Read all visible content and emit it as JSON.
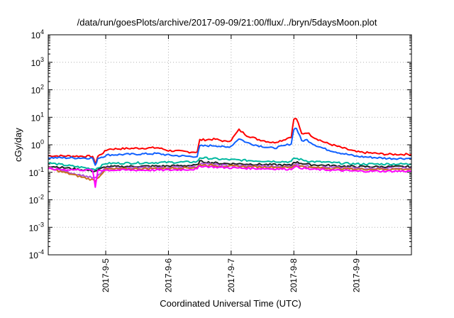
{
  "chart_data": {
    "type": "line",
    "title": "/data/run/goesPlots/archive/2017-09-09/21:00/flux/../bryn/5daysMoon.plot",
    "xlabel": "Coordinated Universal Time (UTC)",
    "ylabel": "cGy/day",
    "yscale": "log",
    "ylim": [
      0.0001,
      10000
    ],
    "xlim": [
      "2017-09-04T02:00",
      "2017-09-09T21:00"
    ],
    "grid": true,
    "legend": "none",
    "yticks": [
      {
        "value": 0.0001,
        "base": "10",
        "exp": "-4"
      },
      {
        "value": 0.001,
        "base": "10",
        "exp": "-3"
      },
      {
        "value": 0.01,
        "base": "10",
        "exp": "-2"
      },
      {
        "value": 0.1,
        "base": "10",
        "exp": "-1"
      },
      {
        "value": 1,
        "base": "10",
        "exp": "0"
      },
      {
        "value": 10,
        "base": "10",
        "exp": "1"
      },
      {
        "value": 100,
        "base": "10",
        "exp": "2"
      },
      {
        "value": 1000,
        "base": "10",
        "exp": "3"
      },
      {
        "value": 10000,
        "base": "10",
        "exp": "4"
      }
    ],
    "xticks": [
      {
        "value": "2017-09-05T00:00",
        "label": "2017-9-5"
      },
      {
        "value": "2017-09-06T00:00",
        "label": "2017-9-6"
      },
      {
        "value": "2017-09-07T00:00",
        "label": "2017-9-7"
      },
      {
        "value": "2017-09-08T00:00",
        "label": "2017-9-8"
      },
      {
        "value": "2017-09-09T00:00",
        "label": "2017-9-9"
      }
    ],
    "series": [
      {
        "color": "#ff0000",
        "x": [
          "2017-09-04T02:00",
          "2017-09-04T19:00",
          "2017-09-04T20:00",
          "2017-09-04T21:00",
          "2017-09-05T01:00",
          "2017-09-05T12:00",
          "2017-09-05T20:00",
          "2017-09-06T00:00",
          "2017-09-06T08:00",
          "2017-09-06T11:00",
          "2017-09-06T12:00",
          "2017-09-06T18:00",
          "2017-09-06T22:00",
          "2017-09-07T00:00",
          "2017-09-07T03:00",
          "2017-09-07T06:00",
          "2017-09-07T10:00",
          "2017-09-07T16:00",
          "2017-09-07T20:00",
          "2017-09-07T23:00",
          "2017-09-08T00:00",
          "2017-09-08T01:00",
          "2017-09-08T03:00",
          "2017-09-08T05:00",
          "2017-09-08T08:00",
          "2017-09-08T12:00",
          "2017-09-08T18:00",
          "2017-09-09T00:00",
          "2017-09-09T12:00",
          "2017-09-09T21:00"
        ],
        "y": [
          0.4,
          0.38,
          0.2,
          0.38,
          0.7,
          0.75,
          0.78,
          0.62,
          0.55,
          0.55,
          1.5,
          1.6,
          1.3,
          1.5,
          3.5,
          2.2,
          1.6,
          1.2,
          1.5,
          2.0,
          8.5,
          9.0,
          2.5,
          2.8,
          1.8,
          1.2,
          0.8,
          0.55,
          0.45,
          0.45
        ]
      },
      {
        "color": "#1060ff",
        "x": [
          "2017-09-04T02:00",
          "2017-09-04T19:00",
          "2017-09-04T20:00",
          "2017-09-04T21:00",
          "2017-09-05T01:00",
          "2017-09-05T12:00",
          "2017-09-05T20:00",
          "2017-09-06T00:00",
          "2017-09-06T08:00",
          "2017-09-06T11:00",
          "2017-09-06T12:00",
          "2017-09-06T18:00",
          "2017-09-06T22:00",
          "2017-09-07T00:00",
          "2017-09-07T03:00",
          "2017-09-07T06:00",
          "2017-09-07T10:00",
          "2017-09-07T16:00",
          "2017-09-07T20:00",
          "2017-09-07T23:00",
          "2017-09-08T00:00",
          "2017-09-08T01:00",
          "2017-09-08T03:00",
          "2017-09-08T05:00",
          "2017-09-08T08:00",
          "2017-09-08T12:00",
          "2017-09-08T18:00",
          "2017-09-09T00:00",
          "2017-09-09T12:00",
          "2017-09-09T21:00"
        ],
        "y": [
          0.34,
          0.33,
          0.17,
          0.33,
          0.43,
          0.46,
          0.48,
          0.42,
          0.38,
          0.38,
          0.9,
          0.95,
          0.8,
          0.9,
          1.7,
          1.2,
          0.95,
          0.75,
          0.9,
          1.1,
          3.8,
          4.0,
          1.4,
          1.5,
          1.0,
          0.7,
          0.5,
          0.38,
          0.32,
          0.32
        ]
      },
      {
        "color": "#00b8a0",
        "x": [
          "2017-09-04T02:00",
          "2017-09-04T20:00",
          "2017-09-05T00:00",
          "2017-09-06T00:00",
          "2017-09-06T11:00",
          "2017-09-06T12:00",
          "2017-09-06T20:00",
          "2017-09-07T06:00",
          "2017-09-07T23:00",
          "2017-09-08T00:00",
          "2017-09-08T06:00",
          "2017-09-09T00:00",
          "2017-09-09T21:00"
        ],
        "y": [
          0.22,
          0.13,
          0.21,
          0.23,
          0.24,
          0.34,
          0.3,
          0.27,
          0.24,
          0.33,
          0.25,
          0.2,
          0.2
        ]
      },
      {
        "color": "#202020",
        "x": [
          "2017-09-04T02:00",
          "2017-09-04T20:00",
          "2017-09-05T00:00",
          "2017-09-06T00:00",
          "2017-09-06T11:00",
          "2017-09-06T12:00",
          "2017-09-06T20:00",
          "2017-09-07T06:00",
          "2017-09-07T23:00",
          "2017-09-08T00:00",
          "2017-09-08T06:00",
          "2017-09-09T00:00",
          "2017-09-09T21:00"
        ],
        "y": [
          0.17,
          0.11,
          0.16,
          0.17,
          0.18,
          0.25,
          0.21,
          0.2,
          0.18,
          0.24,
          0.19,
          0.16,
          0.16
        ]
      },
      {
        "color": "#b050d8",
        "x": [
          "2017-09-04T02:00",
          "2017-09-04T20:00",
          "2017-09-05T00:00",
          "2017-09-06T00:00",
          "2017-09-06T11:00",
          "2017-09-06T12:00",
          "2017-09-06T20:00",
          "2017-09-07T06:00",
          "2017-09-07T23:00",
          "2017-09-08T00:00",
          "2017-09-08T06:00",
          "2017-09-09T00:00",
          "2017-09-09T21:00"
        ],
        "y": [
          0.15,
          0.06,
          0.14,
          0.15,
          0.16,
          0.21,
          0.18,
          0.17,
          0.16,
          0.2,
          0.16,
          0.14,
          0.14
        ]
      },
      {
        "color": "#c87020",
        "x": [
          "2017-09-04T02:00",
          "2017-09-04T20:00",
          "2017-09-05T00:00",
          "2017-09-06T00:00",
          "2017-09-06T11:00",
          "2017-09-06T12:00",
          "2017-09-06T20:00",
          "2017-09-07T06:00",
          "2017-09-07T23:00",
          "2017-09-08T00:00",
          "2017-09-08T06:00",
          "2017-09-09T00:00",
          "2017-09-09T21:00"
        ],
        "y": [
          0.14,
          0.05,
          0.13,
          0.14,
          0.15,
          0.19,
          0.17,
          0.16,
          0.15,
          0.18,
          0.15,
          0.13,
          0.13
        ]
      },
      {
        "color": "#ff00ff",
        "x": [
          "2017-09-04T02:00",
          "2017-09-04T19:00",
          "2017-09-04T20:00",
          "2017-09-04T21:00",
          "2017-09-05T00:00",
          "2017-09-06T00:00",
          "2017-09-06T11:00",
          "2017-09-06T12:00",
          "2017-09-06T20:00",
          "2017-09-07T06:00",
          "2017-09-07T23:00",
          "2017-09-08T00:00",
          "2017-09-08T06:00",
          "2017-09-09T00:00",
          "2017-09-09T21:00"
        ],
        "y": [
          0.13,
          0.12,
          0.028,
          0.12,
          0.12,
          0.12,
          0.13,
          0.17,
          0.15,
          0.14,
          0.13,
          0.16,
          0.13,
          0.11,
          0.11
        ]
      }
    ]
  }
}
